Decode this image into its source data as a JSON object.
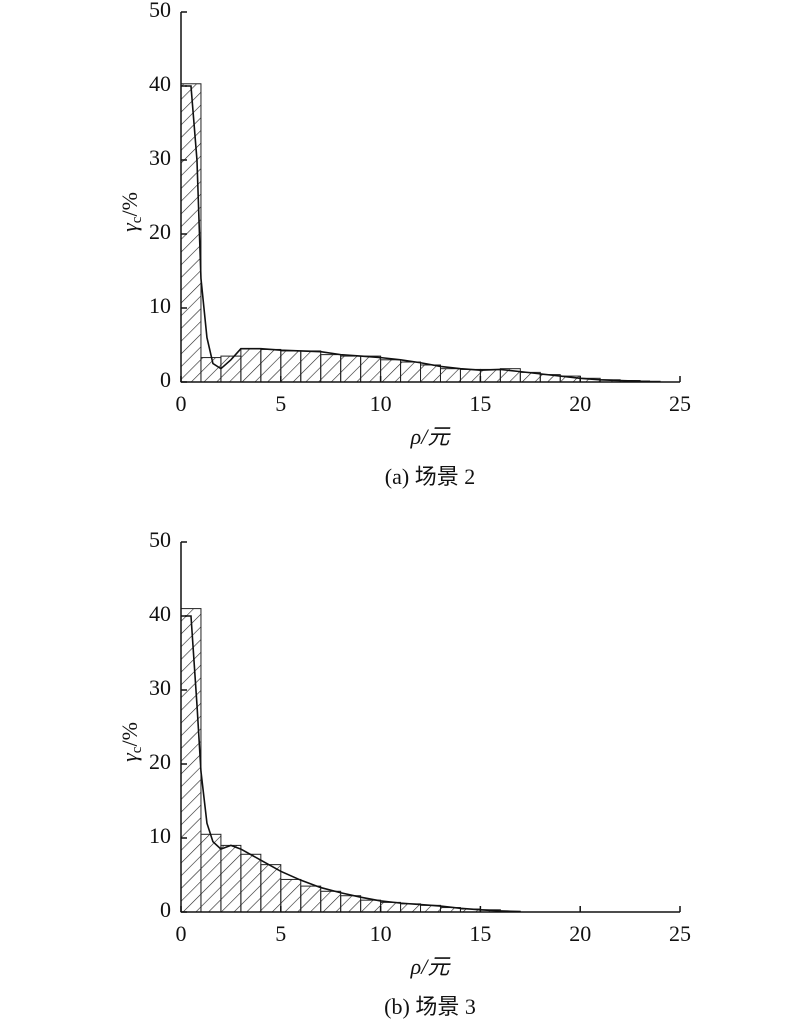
{
  "chart_data": [
    {
      "type": "histogram",
      "caption": "(a) 场景 2",
      "x_label": "ρ/元",
      "y_label": {
        "symbol": "γ",
        "subscript": "c",
        "unit": "/%"
      },
      "bins": [
        0,
        1,
        2,
        3,
        4,
        5,
        6,
        7,
        8,
        9,
        10,
        11,
        12,
        13,
        14,
        15,
        16,
        17,
        18,
        19,
        20,
        21,
        22,
        23,
        24,
        25
      ],
      "counts": [
        40.3,
        3.3,
        3.5,
        4.5,
        4.4,
        4.2,
        4.2,
        3.7,
        3.5,
        3.5,
        3.0,
        2.7,
        2.3,
        1.8,
        1.7,
        1.7,
        1.8,
        1.3,
        1.0,
        0.8,
        0.5,
        0.3,
        0.2,
        0.1,
        0.0
      ],
      "curve": {
        "x": [
          0.2,
          0.5,
          0.8,
          1,
          1.3,
          1.6,
          2,
          2.5,
          3,
          4,
          5,
          6,
          7,
          8,
          9,
          10,
          11,
          12,
          13,
          14,
          15,
          16,
          17,
          18,
          19,
          20,
          21,
          22,
          23,
          23.5
        ],
        "values": [
          40,
          40,
          30,
          14,
          6,
          2.5,
          1.8,
          3,
          4.5,
          4.5,
          4.3,
          4.2,
          4.1,
          3.7,
          3.5,
          3.3,
          3.0,
          2.6,
          2.1,
          1.8,
          1.6,
          1.7,
          1.4,
          1.1,
          0.8,
          0.5,
          0.3,
          0.2,
          0.1,
          0.1
        ]
      },
      "xlim": [
        0,
        25
      ],
      "xticks": [
        0,
        5,
        10,
        15,
        20,
        25
      ],
      "ylim": [
        0,
        50
      ],
      "yticks": [
        0,
        10,
        20,
        30,
        40,
        50
      ]
    },
    {
      "type": "histogram",
      "caption": "(b) 场景 3",
      "x_label": "ρ/元",
      "y_label": {
        "symbol": "γ",
        "subscript": "c",
        "unit": "/%"
      },
      "bins": [
        0,
        1,
        2,
        3,
        4,
        5,
        6,
        7,
        8,
        9,
        10,
        11,
        12,
        13,
        14,
        15,
        16,
        17,
        18,
        19,
        20,
        21,
        22,
        23,
        24,
        25
      ],
      "counts": [
        41,
        10.5,
        9,
        7.8,
        6.4,
        4.4,
        3.5,
        2.8,
        2.2,
        1.6,
        1.3,
        1.1,
        0.9,
        0.6,
        0.4,
        0.3,
        0.1,
        0,
        0,
        0,
        0,
        0,
        0,
        0,
        0
      ],
      "curve": {
        "x": [
          0.2,
          0.5,
          0.8,
          1,
          1.3,
          1.6,
          2,
          2.5,
          3,
          4,
          5,
          6,
          7,
          8,
          9,
          10,
          11,
          12,
          13,
          14,
          15,
          16,
          17
        ],
        "values": [
          40,
          40,
          28,
          19,
          12,
          9.5,
          8.5,
          9,
          8.5,
          7,
          5.5,
          4.3,
          3.3,
          2.6,
          2.0,
          1.5,
          1.2,
          1.0,
          0.8,
          0.5,
          0.3,
          0.15,
          0.05
        ]
      },
      "xlim": [
        0,
        25
      ],
      "xticks": [
        0,
        5,
        10,
        15,
        20,
        25
      ],
      "ylim": [
        0,
        50
      ],
      "yticks": [
        0,
        10,
        20,
        30,
        40,
        50
      ]
    }
  ]
}
